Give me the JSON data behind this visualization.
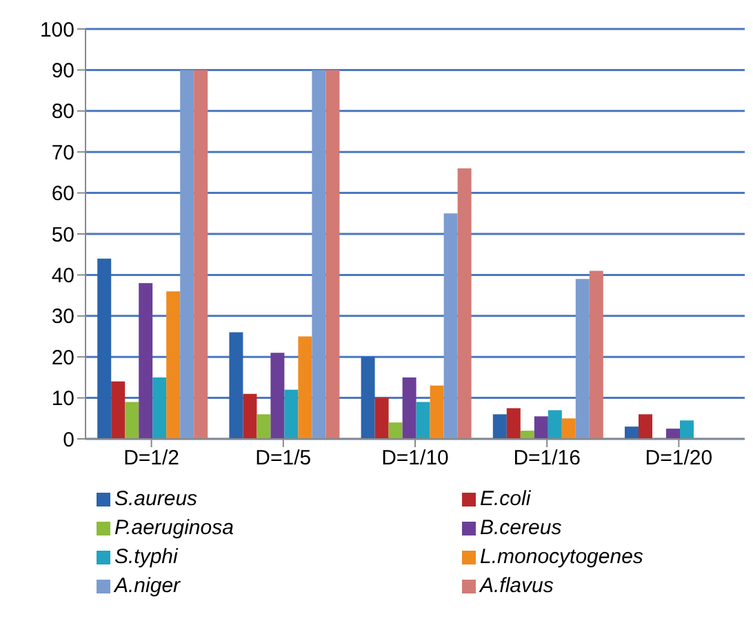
{
  "chart_data": {
    "type": "bar",
    "categories": [
      "D=1/2",
      "D=1/5",
      "D=1/10",
      "D=1/16",
      "D=1/20"
    ],
    "series": [
      {
        "name": "S.aureus",
        "color": "#2a64ad",
        "values": [
          44,
          26,
          20,
          6,
          3
        ]
      },
      {
        "name": "E.coli",
        "color": "#b8282a",
        "values": [
          14,
          11,
          10,
          7.5,
          6
        ]
      },
      {
        "name": "P.aeruginosa",
        "color": "#8cbc3c",
        "values": [
          9,
          6,
          4,
          2,
          0
        ]
      },
      {
        "name": "B.cereus",
        "color": "#6b3f98",
        "values": [
          38,
          21,
          15,
          5.5,
          2.5
        ]
      },
      {
        "name": "S.typhi",
        "color": "#22a3c0",
        "values": [
          15,
          12,
          9,
          7,
          4.5
        ]
      },
      {
        "name": "L.monocytogenes",
        "color": "#ef8a1e",
        "values": [
          36,
          25,
          13,
          5,
          0
        ]
      },
      {
        "name": "A.niger",
        "color": "#7b9cd0",
        "values": [
          90,
          90,
          55,
          39,
          0
        ]
      },
      {
        "name": "A.flavus",
        "color": "#d27a76",
        "values": [
          90,
          90,
          66,
          41,
          0
        ]
      }
    ],
    "ylim": [
      0,
      100
    ],
    "yticks": [
      0,
      10,
      20,
      30,
      40,
      50,
      60,
      70,
      80,
      90,
      100
    ],
    "grid": "y",
    "legend": "bottom"
  }
}
